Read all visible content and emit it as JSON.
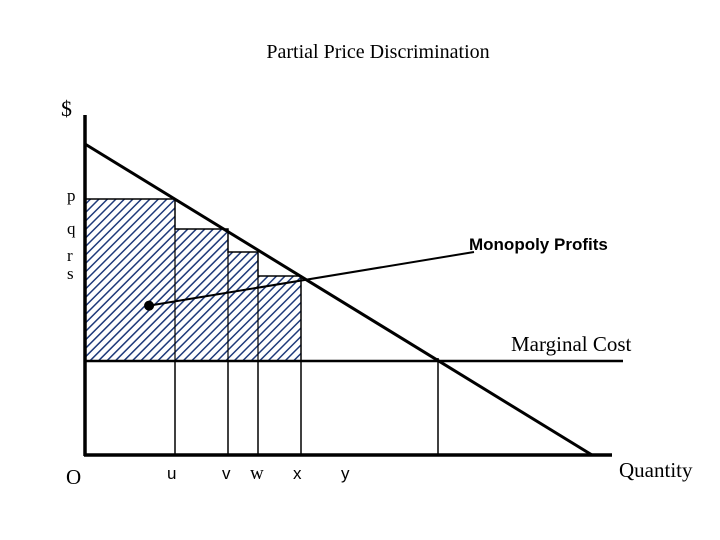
{
  "title": "Partial Price Discrimination",
  "axes": {
    "y_label": "$",
    "x_label": "Quantity",
    "origin_label": "O"
  },
  "price_labels": [
    "p",
    "q",
    "r",
    "s"
  ],
  "quantity_labels": [
    "u",
    "v",
    "w",
    "x",
    "y"
  ],
  "annotations": {
    "monopoly_profits": "Monopoly Profits",
    "marginal_cost": "Marginal Cost"
  },
  "colors": {
    "hatch": "#1f3a7a",
    "line": "#000000"
  }
}
